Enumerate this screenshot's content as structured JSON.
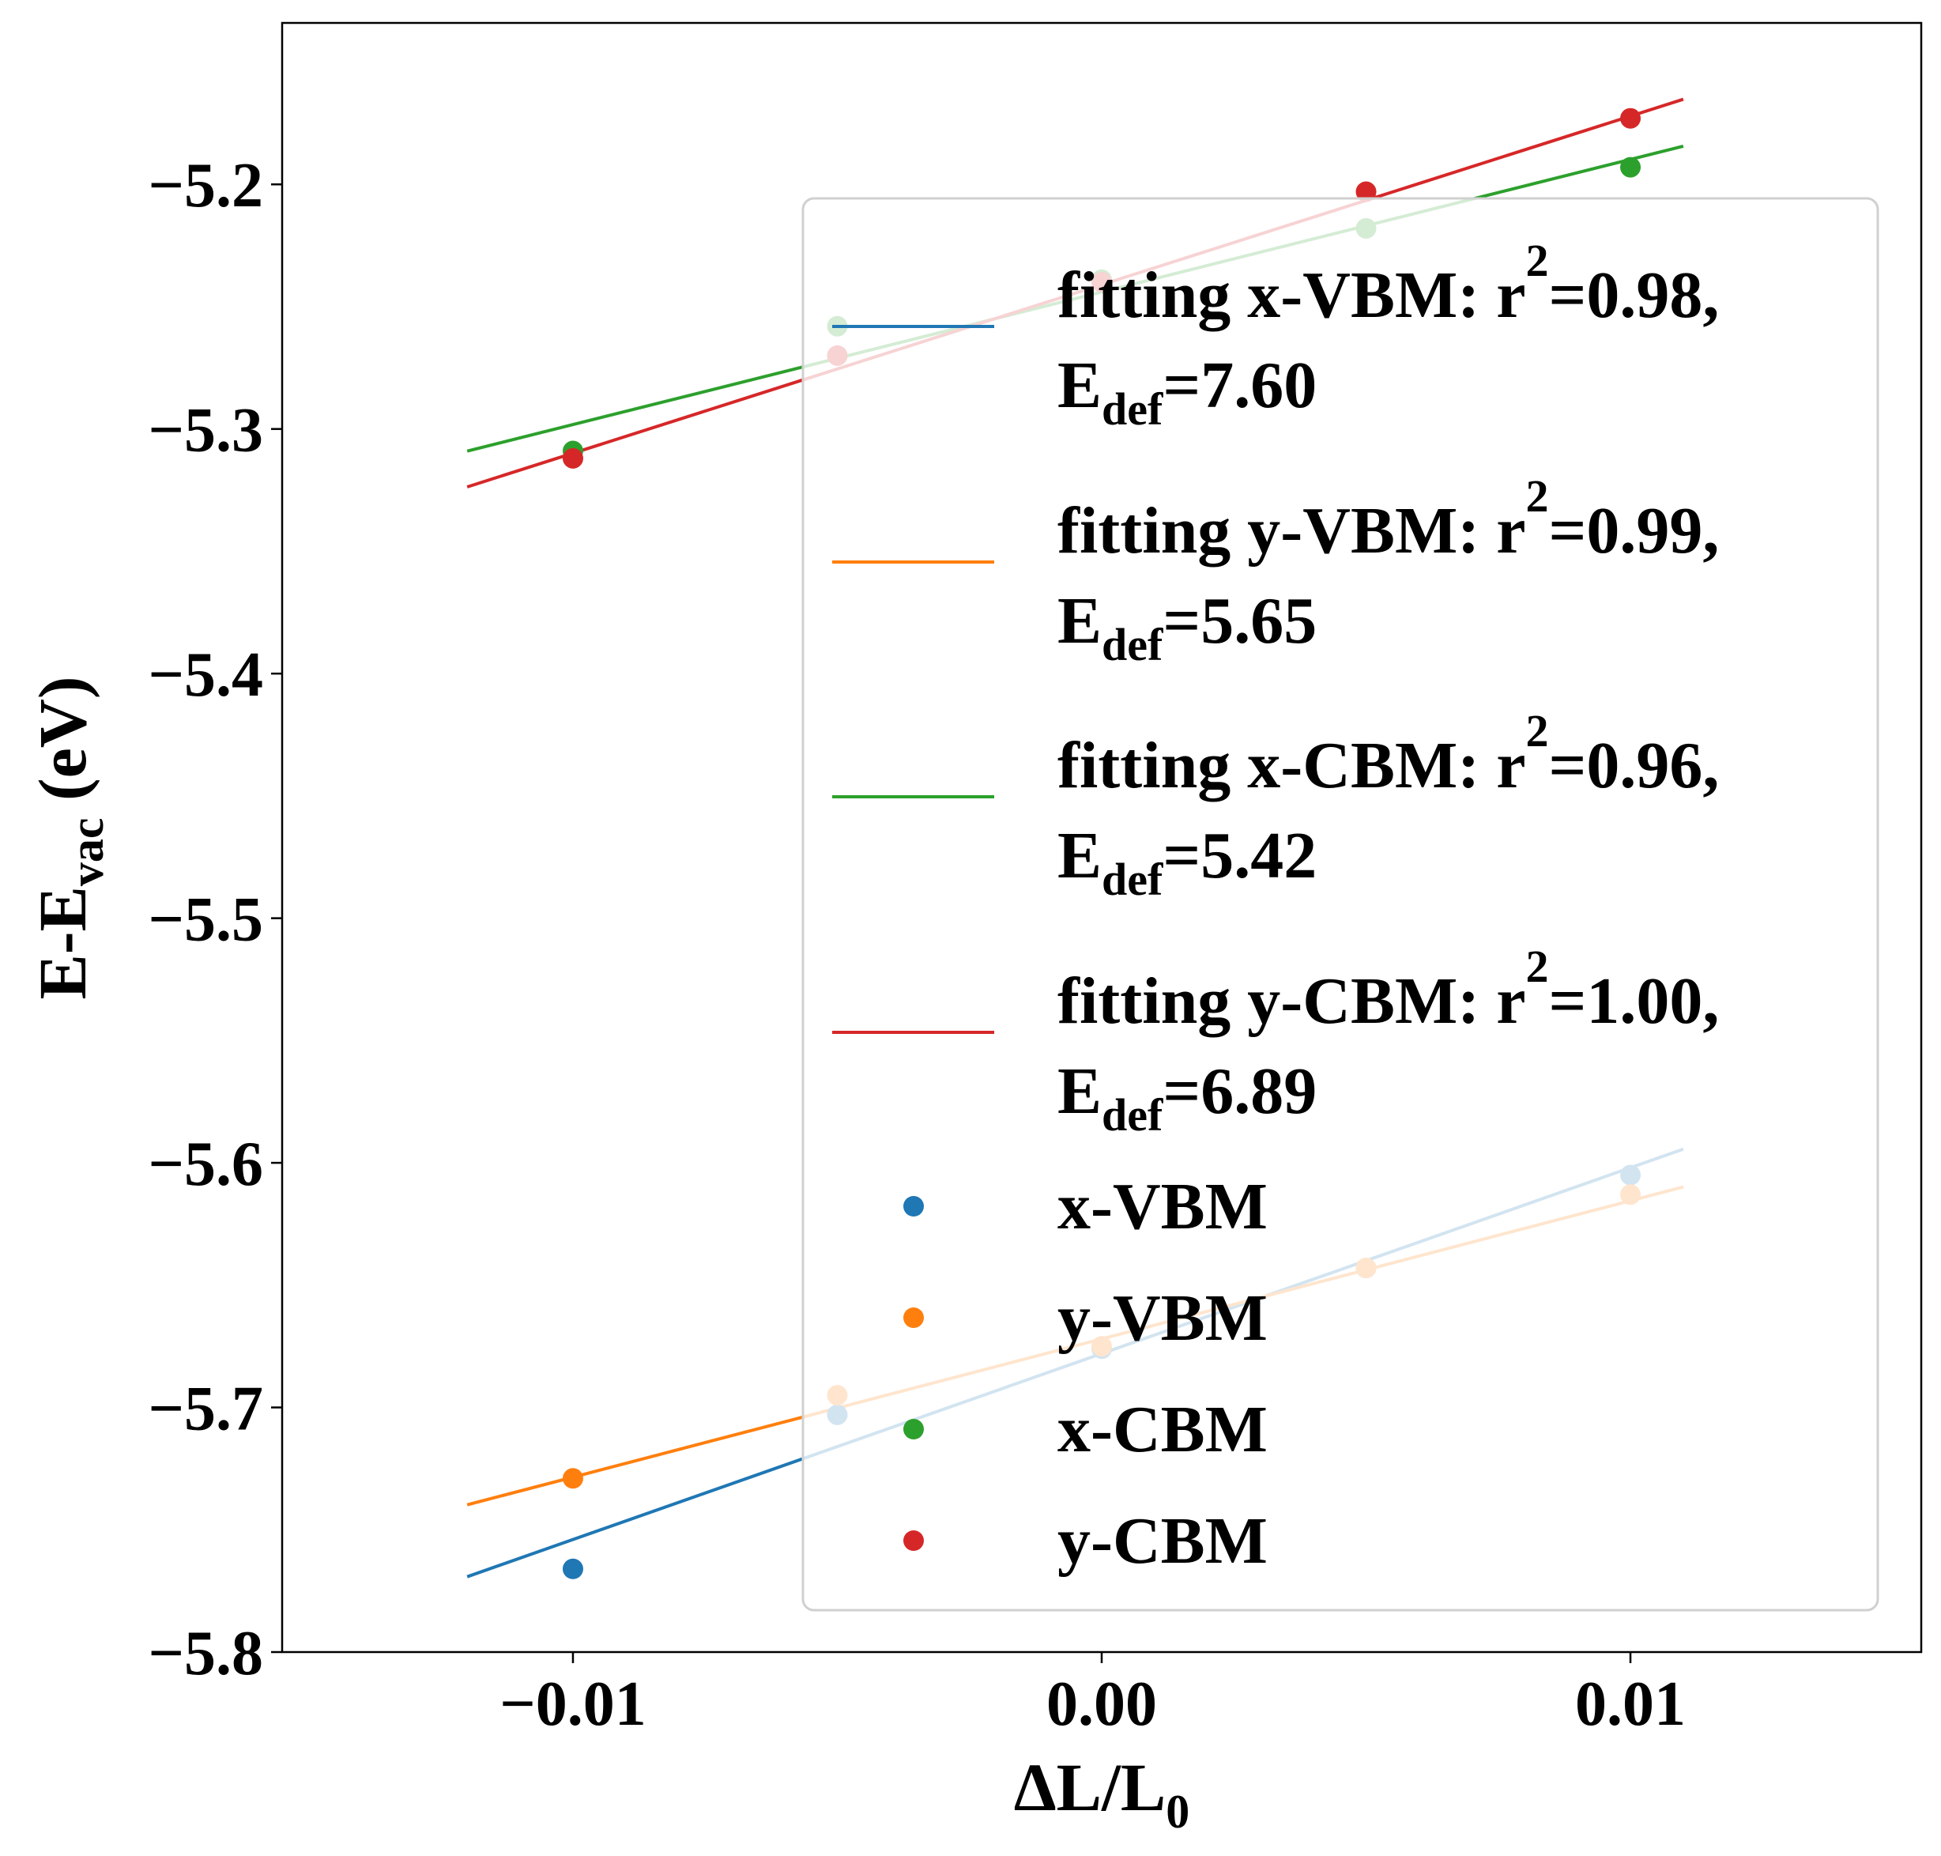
{
  "chart_data": {
    "type": "scatter",
    "xlabel": {
      "main": "ΔL/L",
      "sub": "0"
    },
    "ylabel": {
      "main": "E-E",
      "sub": "vac",
      "suffix": " (eV)"
    },
    "xlim": [
      -0.0155,
      0.0155
    ],
    "ylim": [
      -5.8,
      -5.134
    ],
    "xticks": [
      -0.01,
      0.0,
      0.01
    ],
    "xtick_labels": [
      "−0.01",
      "0.00",
      "0.01"
    ],
    "yticks": [
      -5.2,
      -5.3,
      -5.4,
      -5.5,
      -5.6,
      -5.7,
      -5.8
    ],
    "ytick_labels": [
      "−5.2",
      "−5.3",
      "−5.4",
      "−5.5",
      "−5.6",
      "−5.7",
      "−5.8"
    ],
    "legend_placement": "right",
    "fit_x_range": [
      -0.012,
      0.011
    ],
    "fits": [
      {
        "label": "fitting x-VBM: r",
        "sup": "2",
        "rest": "=0.98,",
        "edef_prefix": "E",
        "edef_sub": "def",
        "edef_value": "=7.60",
        "slope": 7.6,
        "intercept": -5.678,
        "color": "#1f77b4"
      },
      {
        "label": "fitting y-VBM: r",
        "sup": "2",
        "rest": "=0.99,",
        "edef_prefix": "E",
        "edef_sub": "def",
        "edef_value": "=5.65",
        "slope": 5.65,
        "intercept": -5.672,
        "color": "#ff7f0e"
      },
      {
        "label": "fitting x-CBM: r",
        "sup": "2",
        "rest": "=0.96,",
        "edef_prefix": "E",
        "edef_sub": "def",
        "edef_value": "=5.42",
        "slope": 5.42,
        "intercept": -5.244,
        "color": "#2ca02c"
      },
      {
        "label": "fitting y-CBM: r",
        "sup": "2",
        "rest": "=1.00,",
        "edef_prefix": "E",
        "edef_sub": "def",
        "edef_value": "=6.89",
        "slope": 6.89,
        "intercept": -5.241,
        "color": "#d62728"
      }
    ],
    "series": [
      {
        "name": "x-VBM",
        "color": "#1f77b4",
        "x": [
          -0.01,
          -0.005,
          0.0,
          0.005,
          0.01
        ],
        "y": [
          -5.766,
          -5.703,
          -5.676,
          -5.643,
          -5.605
        ]
      },
      {
        "name": "y-VBM",
        "color": "#ff7f0e",
        "x": [
          -0.01,
          -0.005,
          0.0,
          0.005,
          0.01
        ],
        "y": [
          -5.729,
          -5.695,
          -5.675,
          -5.643,
          -5.613
        ]
      },
      {
        "name": "x-CBM",
        "color": "#2ca02c",
        "x": [
          -0.01,
          -0.005,
          0.0,
          0.005,
          0.01
        ],
        "y": [
          -5.309,
          -5.258,
          -5.239,
          -5.218,
          -5.193
        ]
      },
      {
        "name": "y-CBM",
        "color": "#d62728",
        "x": [
          -0.01,
          -0.005,
          0.0,
          0.005,
          0.01
        ],
        "y": [
          -5.312,
          -5.27,
          -5.24,
          -5.203,
          -5.173
        ]
      }
    ]
  }
}
